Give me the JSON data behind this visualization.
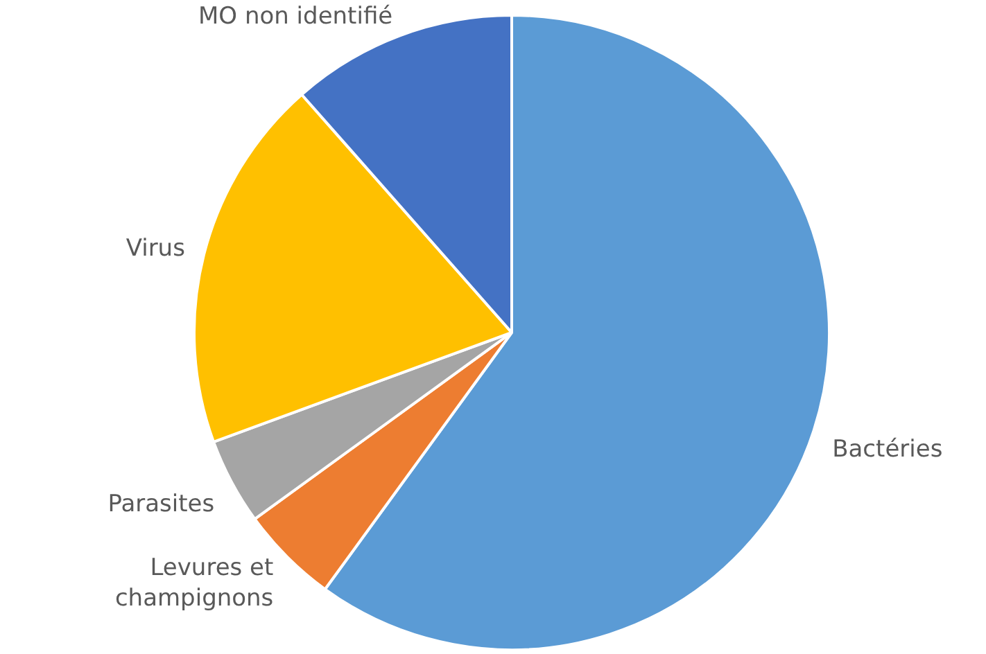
{
  "chart_data": {
    "type": "pie",
    "categories": [
      "Bactéries",
      "Levures et champignons",
      "Parasites",
      "Virus",
      "MO non identifié"
    ],
    "values": [
      60,
      5,
      4.4,
      19.1,
      11.5
    ],
    "colors": [
      "#5b9bd5",
      "#ed7d31",
      "#a5a5a5",
      "#ffc000",
      "#4472c4"
    ],
    "legend": false
  }
}
